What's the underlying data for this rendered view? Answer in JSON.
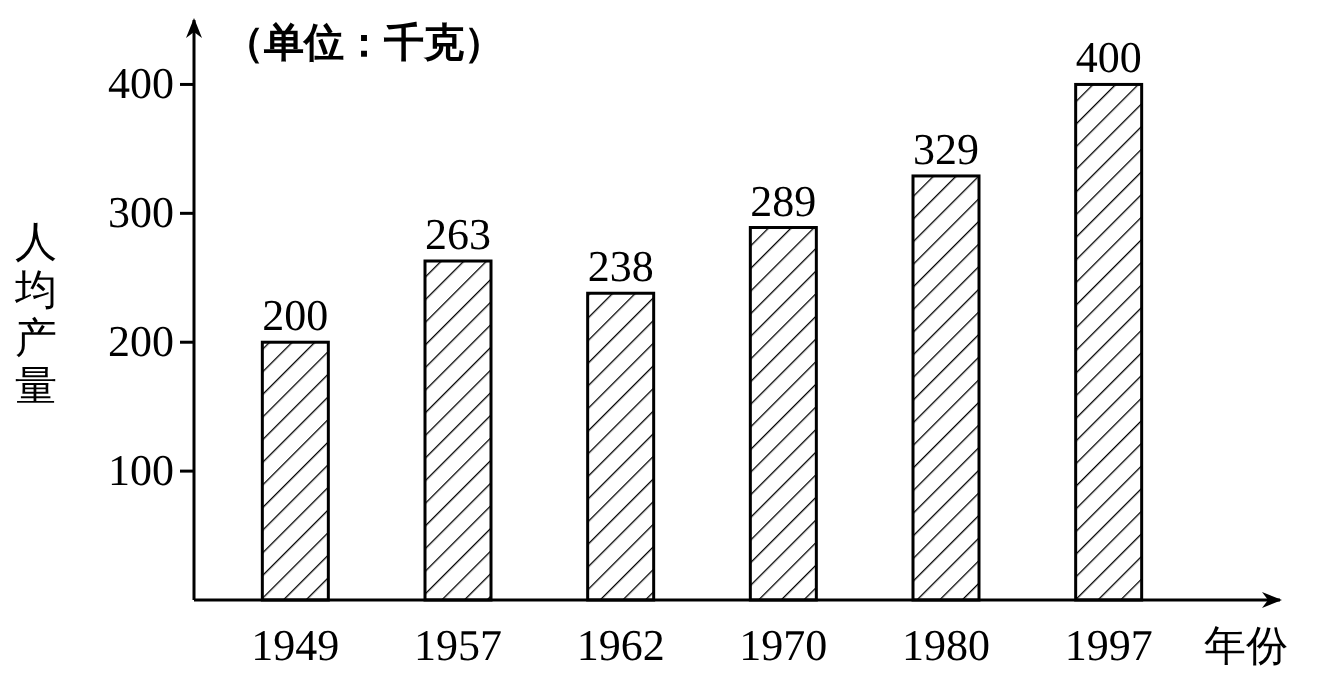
{
  "chart_data": {
    "type": "bar",
    "categories": [
      "1949",
      "1957",
      "1962",
      "1970",
      "1980",
      "1997"
    ],
    "values": [
      200,
      263,
      238,
      289,
      329,
      400
    ],
    "color": "#000000",
    "ylim": [
      0,
      450
    ],
    "yticks": [
      100,
      200,
      300,
      400
    ],
    "ylabel": "人均产量",
    "xlabel": "年份",
    "annotations": [
      "（单位：千克）"
    ],
    "data_labels": true,
    "grid": false
  }
}
